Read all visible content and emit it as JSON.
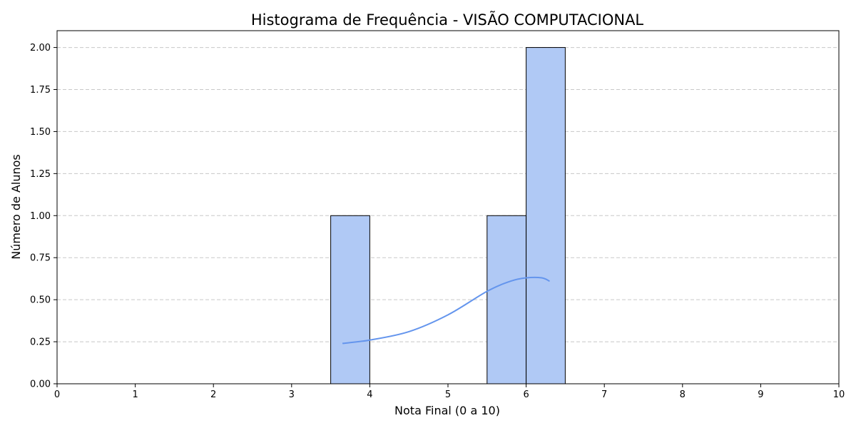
{
  "chart_data": {
    "type": "bar",
    "title": "Histograma de Frequência - VISÃO COMPUTACIONAL",
    "xlabel": "Nota Final (0 a 10)",
    "ylabel": "Número de Alunos",
    "xlim": [
      0,
      10
    ],
    "ylim": [
      0,
      2.1
    ],
    "x_ticks": [
      "0",
      "1",
      "2",
      "3",
      "4",
      "5",
      "6",
      "7",
      "8",
      "9",
      "10"
    ],
    "y_ticks": [
      "0.00",
      "0.25",
      "0.50",
      "0.75",
      "1.00",
      "1.25",
      "1.50",
      "1.75",
      "2.00"
    ],
    "grid": "horizontal-dashed",
    "bins": [
      {
        "x0": 3.5,
        "x1": 4.0,
        "count": 1
      },
      {
        "x0": 5.5,
        "x1": 6.0,
        "count": 1
      },
      {
        "x0": 6.0,
        "x1": 6.5,
        "count": 2
      }
    ],
    "kde_curve": {
      "x": [
        3.65,
        4.0,
        4.5,
        5.0,
        5.5,
        5.8,
        6.0,
        6.2,
        6.3
      ],
      "y": [
        0.24,
        0.26,
        0.31,
        0.41,
        0.55,
        0.61,
        0.63,
        0.63,
        0.61
      ]
    },
    "colors": {
      "bar_fill": "#b0c9f5",
      "bar_edge": "#000000",
      "kde_line": "#6495ed",
      "grid": "#c8c8c8"
    }
  }
}
